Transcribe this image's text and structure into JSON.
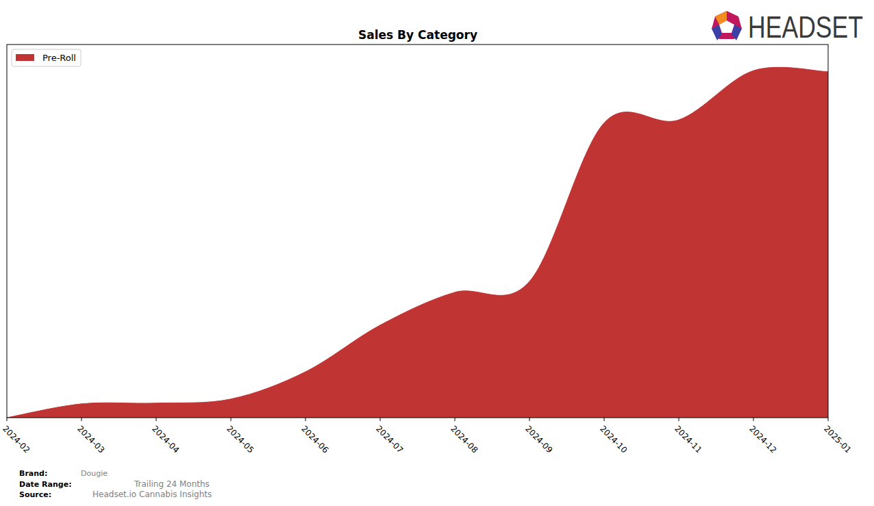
{
  "chart_data": {
    "type": "area",
    "title": "Sales By Category",
    "x": [
      "2024-02",
      "2024-03",
      "2024-04",
      "2024-05",
      "2024-06",
      "2024-07",
      "2024-08",
      "2024-09",
      "2024-10",
      "2024-11",
      "2024-12",
      "2025-01"
    ],
    "series": [
      {
        "name": "Pre-Roll",
        "color": "#c03434",
        "values": [
          0,
          3.7,
          3.9,
          5.0,
          12.3,
          24.8,
          33.6,
          36.5,
          79.0,
          79.8,
          93.0,
          92.7
        ]
      }
    ],
    "ylim": [
      0,
      100
    ],
    "legend": "upper left",
    "tick_labels": "x",
    "grid": false,
    "logo": "HEADSET",
    "footer": [
      {
        "label": "Brand:",
        "value": "Dougie"
      },
      {
        "label": "Date Range:",
        "value": "Trailing 24 Months"
      },
      {
        "label": "Source:",
        "value": "Headset.io Cannabis Insights"
      }
    ]
  }
}
